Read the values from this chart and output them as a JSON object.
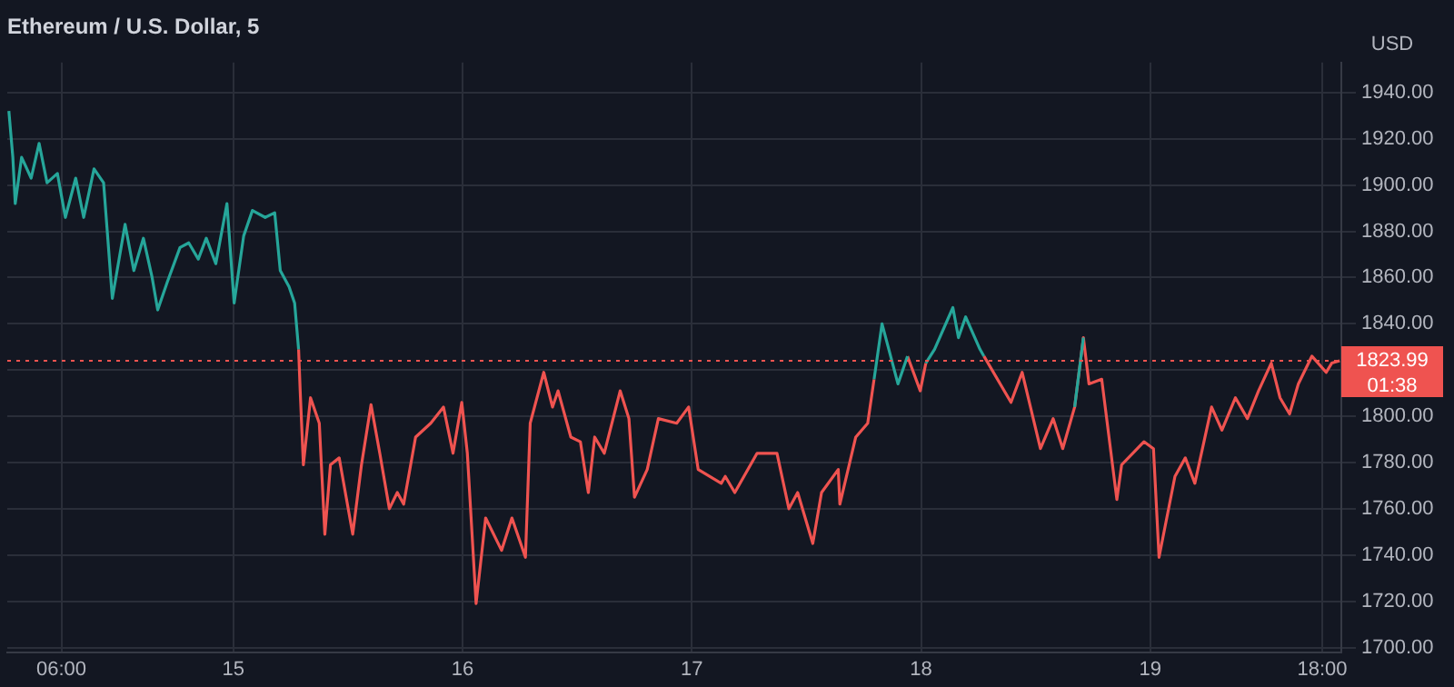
{
  "chart_data": {
    "type": "line",
    "title": "Ethereum / U.S. Dollar, 5",
    "ylabel": "USD",
    "x": [
      "--05-14T00:30",
      "--05-14T00:55",
      "--05-14T01:10",
      "--05-14T01:50",
      "--05-14T02:50",
      "--05-14T03:40",
      "--05-14T04:30",
      "--05-14T05:35",
      "--05-14T06:25",
      "--05-14T07:30",
      "--05-14T08:20",
      "--05-14T09:25",
      "--05-14T10:25",
      "--05-14T11:20",
      "--05-14T12:40",
      "--05-14T13:35",
      "--05-14T14:35",
      "--05-14T15:30",
      "--05-14T16:05",
      "--05-14T17:05",
      "--05-14T18:25",
      "--05-14T19:20",
      "--05-14T20:20",
      "--05-14T21:10",
      "--05-14T22:10",
      "--05-14T23:20",
      "--05-15T00:05",
      "--05-15T01:05",
      "--05-15T02:00",
      "--05-15T03:20",
      "--05-15T04:20",
      "--05-15T04:55",
      "--05-15T05:50",
      "--05-15T06:25",
      "--05-15T06:50",
      "--05-15T07:00",
      "--05-15T07:20",
      "--05-15T08:05",
      "--05-15T09:00",
      "--05-15T09:35",
      "--05-15T10:10",
      "--05-15T11:05",
      "--05-15T12:30",
      "--05-15T13:25",
      "--05-15T14:25",
      "--05-15T15:20",
      "--05-15T16:20",
      "--05-15T17:10",
      "--05-15T17:50",
      "--05-15T19:05",
      "--05-15T20:40",
      "--05-15T22:00",
      "--05-15T23:00",
      "--05-15T23:55",
      "--05-16T00:30",
      "--05-16T01:25",
      "--05-16T02:25",
      "--05-16T04:05",
      "--05-16T05:10",
      "--05-16T06:35",
      "--05-16T07:05",
      "--05-16T08:30",
      "--05-16T09:25",
      "--05-16T10:00",
      "--05-16T11:20",
      "--05-16T12:20",
      "--05-16T13:10",
      "--05-16T13:50",
      "--05-16T14:50",
      "--05-16T16:30",
      "--05-16T17:25",
      "--05-16T18:00",
      "--05-16T19:20",
      "--05-16T20:30",
      "--05-16T22:25",
      "--05-16T23:40",
      "--05-17T00:40",
      "--05-17T03:05",
      "--05-17T03:30",
      "--05-17T04:30",
      "--05-17T06:50",
      "--05-17T08:55",
      "--05-17T10:10",
      "--05-17T11:05",
      "--05-17T12:40",
      "--05-17T13:35",
      "--05-17T15:20",
      "--05-17T15:30",
      "--05-17T17:10",
      "--05-17T18:25",
      "--05-17T19:05",
      "--05-17T19:55",
      "--05-17T21:35",
      "--05-17T22:35",
      "--05-17T23:55",
      "--05-18T00:30",
      "--05-18T01:25",
      "--05-18T03:20",
      "--05-18T03:55",
      "--05-18T04:40",
      "--05-18T06:10",
      "--05-18T06:35",
      "--05-18T09:25",
      "--05-18T10:35",
      "--05-18T12:30",
      "--05-18T13:50",
      "--05-18T14:50",
      "--05-18T16:05",
      "--05-18T17:00",
      "--05-18T17:35",
      "--05-18T18:55",
      "--05-18T20:30",
      "--05-18T21:00",
      "--05-18T23:20",
      "--05-19T00:20",
      "--05-19T00:55",
      "--05-19T02:35",
      "--05-19T03:40",
      "--05-19T04:40",
      "--05-19T06:25",
      "--05-19T07:30",
      "--05-19T08:55",
      "--05-19T10:10",
      "--05-19T11:20",
      "--05-19T12:40",
      "--05-19T13:35",
      "--05-19T14:35",
      "--05-19T15:30",
      "--05-19T16:55",
      "--05-19T18:25",
      "--05-19T19:00",
      "--05-19T19:50"
    ],
    "series": [
      {
        "color": "#26a69a",
        "values": [
          1932,
          1912,
          1892,
          1912,
          1903,
          1918,
          1901,
          1905,
          1886,
          1903,
          1886,
          1907,
          1901,
          1851,
          1883,
          1863,
          1877,
          1860,
          1846,
          1858,
          1873,
          1875,
          1868,
          1877,
          1866,
          1892,
          1849,
          1878,
          1889,
          1886,
          1888,
          1863,
          1856,
          1849,
          1829,
          null,
          null,
          null,
          null,
          null,
          null,
          null,
          null,
          null,
          null,
          null,
          null,
          null,
          null,
          null,
          null,
          null,
          null,
          null,
          null,
          null,
          null,
          null,
          null,
          null,
          null,
          null,
          null,
          null,
          null,
          null,
          null,
          null,
          null,
          null,
          null,
          null,
          null,
          null,
          null,
          null,
          null,
          null,
          null,
          null,
          null,
          null,
          null,
          null,
          null,
          null,
          null,
          null,
          null,
          null,
          1816,
          1840,
          1814,
          1826,
          null,
          1823,
          1829,
          1847,
          1834,
          1843,
          1829,
          1826,
          null,
          null,
          null,
          null,
          null,
          1804,
          1834,
          null,
          null,
          null,
          null,
          null,
          null,
          null,
          null,
          null,
          null,
          null,
          null,
          null,
          null,
          null,
          null,
          null,
          null,
          null,
          null,
          null,
          null,
          null
        ]
      },
      {
        "color": "#ef5350",
        "values": [
          null,
          null,
          null,
          null,
          null,
          null,
          null,
          null,
          null,
          null,
          null,
          null,
          null,
          null,
          null,
          null,
          null,
          null,
          null,
          null,
          null,
          null,
          null,
          null,
          null,
          null,
          null,
          null,
          null,
          null,
          null,
          null,
          null,
          null,
          1829,
          1811,
          1779,
          1808,
          1797,
          1749,
          1779,
          1782,
          1749,
          1779,
          1805,
          1784,
          1760,
          1767,
          1762,
          1791,
          1797,
          1804,
          1784,
          1806,
          1784,
          1719,
          1756,
          1742,
          1756,
          1739,
          1797,
          1819,
          1804,
          1811,
          1791,
          1789,
          1767,
          1791,
          1784,
          1811,
          1799,
          1765,
          1777,
          1799,
          1797,
          1804,
          1777,
          1771,
          1774,
          1767,
          1784,
          1784,
          1760,
          1767,
          1745,
          1767,
          1777,
          1762,
          1791,
          1797,
          1816,
          null,
          null,
          1826,
          1811,
          1823,
          null,
          null,
          null,
          null,
          null,
          1826,
          1806,
          1819,
          1786,
          1799,
          1786,
          1804,
          1834,
          1814,
          1816,
          1764,
          1779,
          1789,
          1786,
          1739,
          1774,
          1782,
          1771,
          1804,
          1794,
          1808,
          1799,
          1811,
          1823,
          1808,
          1801,
          1814,
          1826,
          1819,
          1823,
          1824
        ]
      }
    ],
    "xlim": [
      "--05-14T00:20",
      "--05-19T20:00"
    ],
    "xticks": [
      {
        "value": "--05-14T06:00",
        "label": "06:00"
      },
      {
        "value": "--05-15",
        "label": "15"
      },
      {
        "value": "--05-16",
        "label": "16"
      },
      {
        "value": "--05-17",
        "label": "17"
      },
      {
        "value": "--05-18",
        "label": "18"
      },
      {
        "value": "--05-19",
        "label": "19"
      },
      {
        "value": "--05-19T18:00",
        "label": "18:00"
      }
    ],
    "ylim": [
      1698,
      1953
    ],
    "yticks": [
      {
        "value": 1700,
        "label": "1700.00"
      },
      {
        "value": 1720,
        "label": "1720.00"
      },
      {
        "value": 1740,
        "label": "1740.00"
      },
      {
        "value": 1760,
        "label": "1760.00"
      },
      {
        "value": 1780,
        "label": "1780.00"
      },
      {
        "value": 1800,
        "label": "1800.00"
      },
      {
        "value": 1820,
        "label": null
      },
      {
        "value": 1840,
        "label": "1840.00"
      },
      {
        "value": 1860,
        "label": "1860.00"
      },
      {
        "value": 1880,
        "label": "1880.00"
      },
      {
        "value": 1900,
        "label": "1900.00"
      },
      {
        "value": 1920,
        "label": "1920.00"
      },
      {
        "value": 1940,
        "label": "1940.00"
      }
    ],
    "ref_lines": [
      {
        "axis": "y",
        "value": 1823.99,
        "label": "1823.99",
        "color": "#ef5350",
        "line_style": "dotted"
      }
    ],
    "annotations": [
      "01:38"
    ],
    "grid": true,
    "legend": false,
    "marker": "none",
    "line_style": "solid"
  }
}
